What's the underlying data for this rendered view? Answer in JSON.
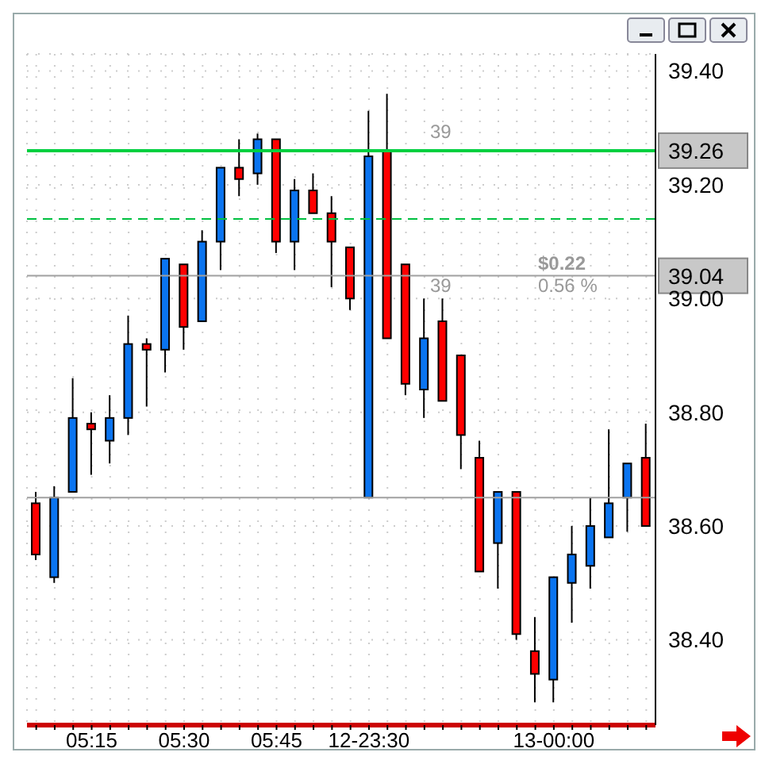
{
  "chart_data": {
    "type": "candlestick",
    "categories": [
      null,
      null,
      null,
      "05:15",
      null,
      null,
      null,
      null,
      "05:30",
      null,
      null,
      null,
      null,
      "05:45",
      null,
      null,
      null,
      null,
      "12-23:30",
      null,
      null,
      null,
      null,
      null,
      null,
      null,
      null,
      null,
      "13-00:00",
      null,
      null,
      null,
      null,
      null
    ],
    "ohlc": [
      [
        38.64,
        38.66,
        38.54,
        38.55
      ],
      [
        38.51,
        38.67,
        38.5,
        38.65
      ],
      [
        38.66,
        38.86,
        38.66,
        38.79
      ],
      [
        38.78,
        38.8,
        38.69,
        38.77
      ],
      [
        38.75,
        38.83,
        38.71,
        38.79
      ],
      [
        38.79,
        38.97,
        38.76,
        38.92
      ],
      [
        38.92,
        38.93,
        38.81,
        38.91
      ],
      [
        38.91,
        39.07,
        38.87,
        39.07
      ],
      [
        39.06,
        39.06,
        38.91,
        38.95
      ],
      [
        38.96,
        39.12,
        38.96,
        39.1
      ],
      [
        39.1,
        39.23,
        39.05,
        39.23
      ],
      [
        39.23,
        39.28,
        39.18,
        39.21
      ],
      [
        39.22,
        39.29,
        39.2,
        39.28
      ],
      [
        39.28,
        39.28,
        39.08,
        39.1
      ],
      [
        39.1,
        39.21,
        39.05,
        39.19
      ],
      [
        39.19,
        39.22,
        39.15,
        39.15
      ],
      [
        39.15,
        39.18,
        39.02,
        39.1
      ],
      [
        39.09,
        39.09,
        38.98,
        39.0
      ],
      [
        38.65,
        39.33,
        38.65,
        39.25
      ],
      [
        39.26,
        39.36,
        38.93,
        38.93
      ],
      [
        39.06,
        39.06,
        38.83,
        38.85
      ],
      [
        38.84,
        39.0,
        38.79,
        38.93
      ],
      [
        38.96,
        39.0,
        38.82,
        38.82
      ],
      [
        38.9,
        38.9,
        38.7,
        38.76
      ],
      [
        38.72,
        38.75,
        38.52,
        38.52
      ],
      [
        38.57,
        38.66,
        38.49,
        38.66
      ],
      [
        38.66,
        38.66,
        38.4,
        38.41
      ],
      [
        38.38,
        38.44,
        38.29,
        38.34
      ],
      [
        38.33,
        38.51,
        38.29,
        38.51
      ],
      [
        38.5,
        38.6,
        38.43,
        38.55
      ],
      [
        38.53,
        38.65,
        38.49,
        38.6
      ],
      [
        38.58,
        38.77,
        38.58,
        38.64
      ],
      [
        38.65,
        38.71,
        38.59,
        38.71
      ],
      [
        38.72,
        38.78,
        38.6,
        38.6
      ]
    ],
    "colors": [
      "#ff0000",
      "#0a74f0",
      "#0a74f0",
      "#ff0000",
      "#0a74f0",
      "#0a74f0",
      "#ff0000",
      "#0a74f0",
      "#ff0000",
      "#0a74f0",
      "#0a74f0",
      "#ff0000",
      "#0a74f0",
      "#ff0000",
      "#0a74f0",
      "#ff0000",
      "#ff0000",
      "#ff0000",
      "#0a74f0",
      "#ff0000",
      "#ff0000",
      "#0a74f0",
      "#ff0000",
      "#ff0000",
      "#ff0000",
      "#0a74f0",
      "#ff0000",
      "#ff0000",
      "#0a74f0",
      "#0a74f0",
      "#0a74f0",
      "#0a74f0",
      "#0a74f0",
      "#ff0000"
    ],
    "ylim": [
      38.25,
      39.43
    ],
    "yticks": [
      {
        "value": 38.4,
        "label": "38.40"
      },
      {
        "value": 38.6,
        "label": "38.60"
      },
      {
        "value": 38.8,
        "label": "38.80"
      },
      {
        "value": 39.0,
        "label": "39.00"
      },
      {
        "value": 39.2,
        "label": "39.20"
      },
      {
        "value": 39.4,
        "label": "39.40"
      }
    ],
    "grid": true,
    "ref_lines": [
      {
        "axis": "y",
        "value": 38.65,
        "color": "#a0a0a0",
        "line_style": "solid"
      },
      {
        "axis": "y",
        "value": 39.26,
        "label": "39.26",
        "color": "#00d040",
        "line_style": "solid"
      },
      {
        "axis": "y",
        "value": 39.04,
        "label": "39.04",
        "color": "#a0a0a0",
        "line_style": "solid"
      },
      {
        "axis": "y",
        "value": 39.14,
        "color": "#00c040",
        "line_style": "dashed"
      }
    ],
    "annotations": [
      {
        "text": "39",
        "y": 39.26
      },
      {
        "text": "39",
        "y": 39.04
      },
      {
        "text": "$0.22",
        "y": 39.04
      },
      {
        "text": "0.56 %",
        "y": 39.04
      }
    ]
  }
}
